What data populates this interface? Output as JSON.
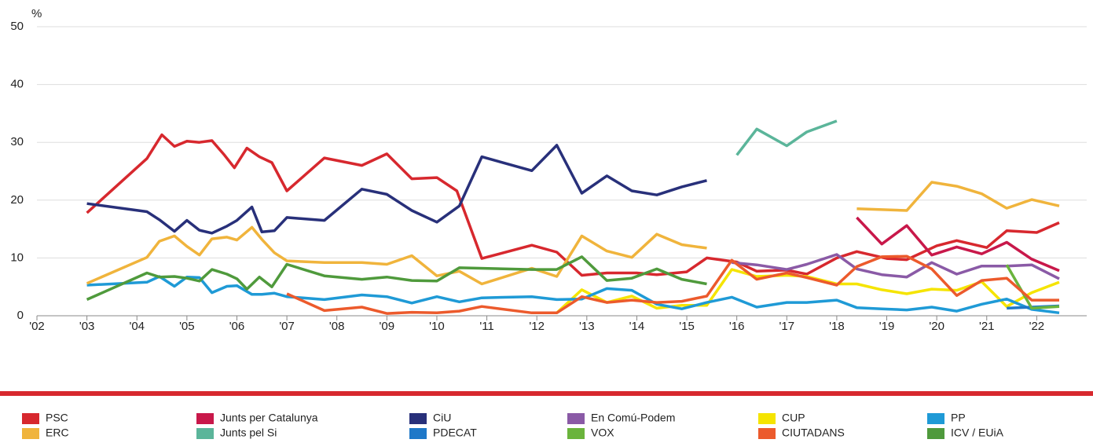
{
  "chart_data": {
    "type": "line",
    "ylabel": "%",
    "xlim": [
      2002,
      2023
    ],
    "ylim": [
      0,
      50
    ],
    "yticks": [
      0,
      10,
      20,
      30,
      40,
      50
    ],
    "grid": true,
    "xticks": [
      {
        "value": 2002,
        "label": "'02"
      },
      {
        "value": 2003,
        "label": "'03"
      },
      {
        "value": 2004,
        "label": "'04"
      },
      {
        "value": 2005,
        "label": "'05"
      },
      {
        "value": 2006,
        "label": "'06"
      },
      {
        "value": 2007,
        "label": "'07"
      },
      {
        "value": 2008,
        "label": "'08"
      },
      {
        "value": 2009,
        "label": "'09"
      },
      {
        "value": 2010,
        "label": "'10"
      },
      {
        "value": 2011,
        "label": "'11"
      },
      {
        "value": 2012,
        "label": "'12"
      },
      {
        "value": 2013,
        "label": "'13"
      },
      {
        "value": 2014,
        "label": "'14"
      },
      {
        "value": 2015,
        "label": "'15"
      },
      {
        "value": 2016,
        "label": "'16"
      },
      {
        "value": 2017,
        "label": "'17"
      },
      {
        "value": 2018,
        "label": "'18"
      },
      {
        "value": 2019,
        "label": "'19"
      },
      {
        "value": 2020,
        "label": "'20"
      },
      {
        "value": 2021,
        "label": "'21"
      },
      {
        "value": 2022,
        "label": "'22"
      }
    ],
    "series": [
      {
        "name": "PSC",
        "color": "#d7282e",
        "x": [
          2003.0,
          2004.2,
          2004.5,
          2004.75,
          2005.0,
          2005.25,
          2005.5,
          2005.75,
          2005.95,
          2006.2,
          2006.45,
          2006.7,
          2007.0,
          2007.75,
          2008.5,
          2009.0,
          2009.5,
          2010.0,
          2010.4,
          2010.9,
          2011.9,
          2012.4,
          2012.9,
          2013.4,
          2014.0,
          2014.4,
          2015.0,
          2015.4,
          2016.0,
          2016.4,
          2017.0,
          2017.4,
          2018.0,
          2018.4,
          2019.0,
          2019.4,
          2020.0,
          2020.4,
          2021.0,
          2021.4,
          2022.0,
          2022.45
        ],
        "values": [
          17.8,
          27.2,
          31.3,
          29.3,
          30.2,
          30.0,
          30.3,
          27.8,
          25.6,
          29.0,
          27.5,
          26.5,
          21.6,
          27.3,
          26.0,
          28.0,
          23.7,
          23.9,
          21.6,
          9.9,
          12.2,
          11.0,
          7.0,
          7.4,
          7.4,
          7.1,
          7.6,
          10.0,
          9.3,
          7.7,
          7.9,
          7.2,
          10.0,
          11.1,
          9.9,
          9.7,
          12.1,
          13.0,
          11.8,
          14.7,
          14.4,
          16.1
        ]
      },
      {
        "name": "Junts per Catalunya",
        "color": "#c8184a",
        "x": [
          2018.4,
          2018.9,
          2019.4,
          2019.9,
          2020.4,
          2020.9,
          2021.4,
          2021.9,
          2022.45
        ],
        "values": [
          17.0,
          12.4,
          15.6,
          10.5,
          11.9,
          10.7,
          12.7,
          9.8,
          7.8
        ]
      },
      {
        "name": "CiU",
        "color": "#28307a",
        "x": [
          2003.0,
          2004.2,
          2004.45,
          2004.75,
          2005.0,
          2005.25,
          2005.5,
          2005.8,
          2006.0,
          2006.3,
          2006.5,
          2006.75,
          2007.0,
          2007.75,
          2008.5,
          2009.0,
          2009.5,
          2010.0,
          2010.45,
          2010.9,
          2011.9,
          2012.4,
          2012.9,
          2013.4,
          2013.9,
          2014.4,
          2014.9,
          2015.4
        ],
        "values": [
          19.4,
          18.0,
          16.6,
          14.6,
          16.5,
          14.8,
          14.3,
          15.5,
          16.5,
          18.8,
          14.5,
          14.7,
          17.0,
          16.5,
          21.9,
          21.0,
          18.2,
          16.2,
          19.0,
          27.5,
          25.1,
          29.5,
          21.2,
          24.2,
          21.6,
          20.9,
          22.3,
          23.4
        ]
      },
      {
        "name": "En Comú-Podem",
        "color": "#8a5aa6",
        "x": [
          2015.9,
          2016.4,
          2017.0,
          2017.4,
          2018.0,
          2018.4,
          2018.9,
          2019.4,
          2019.9,
          2020.4,
          2020.9,
          2021.4,
          2021.9,
          2022.45
        ],
        "values": [
          9.2,
          8.8,
          8.0,
          8.9,
          10.6,
          8.1,
          7.1,
          6.7,
          9.2,
          7.2,
          8.6,
          8.6,
          8.8,
          6.4
        ]
      },
      {
        "name": "CUP",
        "color": "#f5e400",
        "x": [
          2012.4,
          2012.9,
          2013.4,
          2013.9,
          2014.4,
          2014.9,
          2015.4,
          2015.9,
          2016.4,
          2017.0,
          2017.4,
          2018.0,
          2018.4,
          2018.9,
          2019.4,
          2019.9,
          2020.4,
          2020.9,
          2021.4,
          2021.9,
          2022.45
        ],
        "values": [
          0.5,
          4.5,
          2.3,
          3.4,
          1.3,
          1.8,
          1.8,
          8.0,
          6.8,
          7.0,
          6.8,
          5.5,
          5.5,
          4.5,
          3.8,
          4.6,
          4.4,
          5.9,
          1.6,
          4.0,
          5.8
        ]
      },
      {
        "name": "PP",
        "color": "#1f9ad6",
        "x": [
          2003.0,
          2004.2,
          2004.45,
          2004.75,
          2005.0,
          2005.25,
          2005.5,
          2005.8,
          2006.0,
          2006.3,
          2006.5,
          2006.75,
          2007.0,
          2007.75,
          2008.5,
          2009.0,
          2009.5,
          2010.0,
          2010.45,
          2010.9,
          2011.9,
          2012.4,
          2012.9,
          2013.4,
          2013.9,
          2014.4,
          2014.9,
          2015.4,
          2015.9,
          2016.4,
          2017.0,
          2017.4,
          2018.0,
          2018.4,
          2018.9,
          2019.4,
          2019.9,
          2020.4,
          2020.9,
          2021.4,
          2021.9,
          2022.45
        ],
        "values": [
          5.3,
          5.8,
          6.8,
          5.1,
          6.7,
          6.6,
          4.0,
          5.1,
          5.2,
          3.7,
          3.7,
          3.9,
          3.3,
          2.8,
          3.6,
          3.3,
          2.2,
          3.3,
          2.4,
          3.1,
          3.3,
          2.8,
          2.9,
          4.7,
          4.4,
          2.0,
          1.2,
          2.3,
          3.2,
          1.5,
          2.3,
          2.3,
          2.7,
          1.4,
          1.2,
          1.0,
          1.5,
          0.8,
          2.0,
          2.9,
          1.1,
          0.5
        ]
      },
      {
        "name": "ERC",
        "color": "#f0b43c",
        "x": [
          2003.0,
          2004.2,
          2004.45,
          2004.75,
          2005.0,
          2005.25,
          2005.5,
          2005.8,
          2006.0,
          2006.3,
          2006.5,
          2006.75,
          2007.0,
          2007.75,
          2008.5,
          2009.0,
          2009.5,
          2010.0,
          2010.45,
          2010.9,
          2011.9,
          2012.4,
          2012.9,
          2013.4,
          2013.9,
          2014.4,
          2014.9,
          2015.4,
          2016.9,
          2018.4,
          2019.4,
          2019.9,
          2020.4,
          2020.9,
          2021.4,
          2021.9,
          2022.45
        ],
        "values": [
          5.6,
          10.1,
          12.9,
          13.8,
          12.0,
          10.5,
          13.3,
          13.6,
          13.1,
          15.3,
          13.2,
          10.9,
          9.5,
          9.2,
          9.2,
          8.9,
          10.4,
          6.9,
          7.7,
          5.5,
          8.2,
          6.8,
          13.8,
          11.2,
          10.1,
          14.1,
          12.3,
          11.7,
          null,
          18.5,
          18.2,
          23.1,
          22.4,
          21.1,
          18.6,
          20.1,
          19.0
        ]
      },
      {
        "name": "Junts pel Si",
        "color": "#5bb59a",
        "x": [
          2016.0,
          2016.4,
          2017.0,
          2017.4,
          2018.0
        ],
        "values": [
          27.8,
          32.3,
          29.4,
          31.8,
          33.7
        ]
      },
      {
        "name": "PDECAT",
        "color": "#1e78c8",
        "x": [
          2021.4,
          2021.9,
          2022.45
        ],
        "values": [
          1.3,
          1.5,
          1.7
        ]
      },
      {
        "name": "VOX",
        "color": "#6ab43c",
        "x": [
          2021.4,
          2021.9,
          2022.45
        ],
        "values": [
          8.8,
          1.3,
          1.6
        ]
      },
      {
        "name": "CIUTADANS",
        "color": "#ec5a2c",
        "x": [
          2007.0,
          2007.75,
          2008.5,
          2009.0,
          2009.5,
          2010.0,
          2010.45,
          2010.9,
          2011.9,
          2012.4,
          2012.9,
          2013.4,
          2013.9,
          2014.4,
          2014.9,
          2015.4,
          2015.9,
          2016.4,
          2017.0,
          2017.4,
          2018.0,
          2018.4,
          2018.9,
          2019.4,
          2019.9,
          2020.4,
          2020.9,
          2021.4,
          2021.9,
          2022.45
        ],
        "values": [
          3.8,
          0.9,
          1.5,
          0.4,
          0.6,
          0.5,
          0.8,
          1.6,
          0.5,
          0.5,
          3.3,
          2.3,
          2.7,
          2.3,
          2.5,
          3.4,
          9.6,
          6.3,
          7.4,
          6.6,
          5.3,
          8.5,
          10.2,
          10.3,
          8.1,
          3.5,
          6.1,
          6.5,
          2.7,
          2.7
        ]
      },
      {
        "name": "ICV / EUiA",
        "color": "#4f9a3c",
        "x": [
          2003.0,
          2004.2,
          2004.45,
          2004.75,
          2005.0,
          2005.25,
          2005.5,
          2005.8,
          2006.0,
          2006.2,
          2006.45,
          2006.7,
          2007.0,
          2007.75,
          2008.5,
          2009.0,
          2009.5,
          2010.0,
          2010.45,
          2011.9,
          2012.4,
          2012.9,
          2013.4,
          2013.9,
          2014.4,
          2014.9,
          2015.4
        ],
        "values": [
          2.8,
          7.4,
          6.7,
          6.8,
          6.5,
          6.0,
          8.0,
          7.2,
          6.4,
          4.6,
          6.7,
          5.0,
          8.9,
          6.9,
          6.3,
          6.7,
          6.1,
          6.0,
          8.3,
          8.0,
          8.0,
          10.2,
          6.1,
          6.5,
          8.1,
          6.3,
          5.5
        ]
      }
    ]
  }
}
